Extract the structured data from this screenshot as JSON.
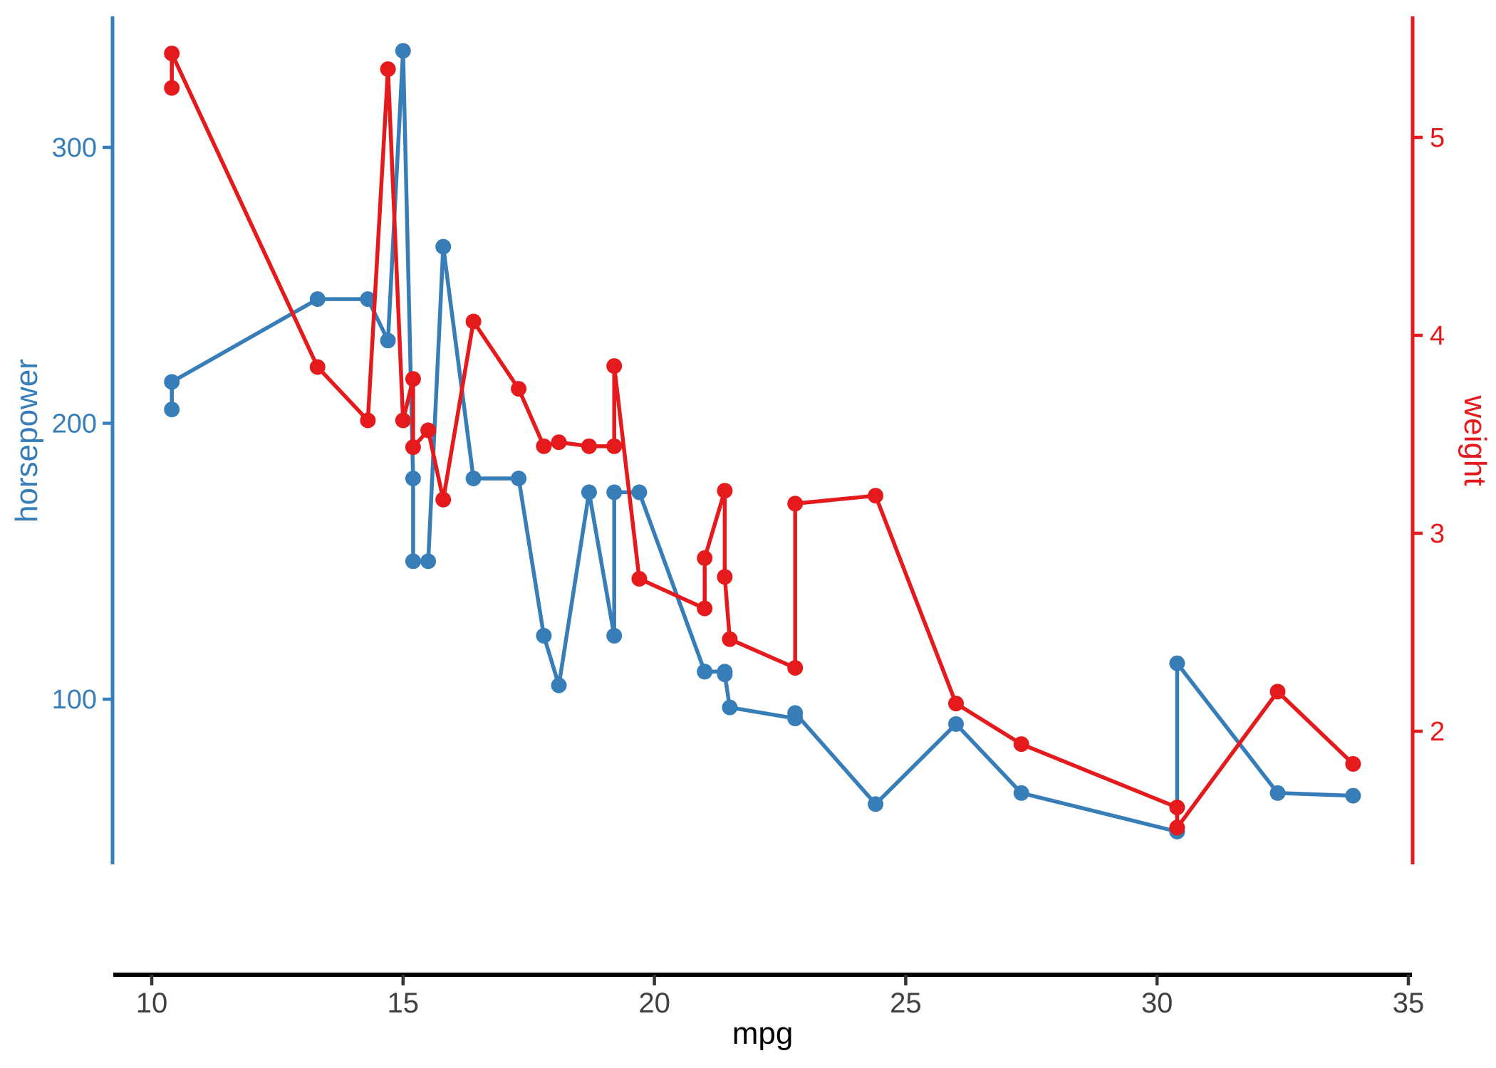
{
  "chart_data": {
    "type": "line",
    "title": "",
    "description": "Dual-axis line+point chart of mtcars: horsepower (left, blue) and weight (right, red) versus mpg, points connected in order of increasing mpg",
    "grid": "off",
    "legend": "none",
    "x_axis": {
      "label": "mpg",
      "ticks": [
        10,
        15,
        20,
        25,
        30,
        35
      ],
      "line_color": "#000000",
      "tick_label_color": "#404040"
    },
    "left_axis": {
      "label": "horsepower",
      "ticks": [
        100,
        200,
        300
      ],
      "color": "#377EB8"
    },
    "right_axis": {
      "label": "weight",
      "ticks": [
        2,
        3,
        4,
        5
      ],
      "color": "#E41A1C"
    },
    "x": [
      10.4,
      10.4,
      13.3,
      14.3,
      14.7,
      15.0,
      15.2,
      15.2,
      15.5,
      15.8,
      16.4,
      17.3,
      17.8,
      18.1,
      18.7,
      19.2,
      19.2,
      19.7,
      21.0,
      21.0,
      21.4,
      21.4,
      21.5,
      22.8,
      22.8,
      24.4,
      26.0,
      27.3,
      30.4,
      30.4,
      32.4,
      33.9
    ],
    "series": [
      {
        "name": "horsepower",
        "axis": "left",
        "color": "#377EB8",
        "values": [
          205,
          215,
          245,
          245,
          230,
          335,
          180,
          150,
          150,
          264,
          180,
          180,
          123,
          105,
          175,
          123,
          175,
          175,
          110,
          110,
          110,
          109,
          97,
          93,
          95,
          62,
          91,
          66,
          52,
          113,
          66,
          65
        ]
      },
      {
        "name": "weight",
        "axis": "right",
        "color": "#E41A1C",
        "values": [
          5.25,
          5.424,
          3.84,
          3.57,
          5.345,
          3.57,
          3.78,
          3.435,
          3.52,
          3.17,
          4.07,
          3.73,
          3.44,
          3.46,
          3.44,
          3.44,
          3.845,
          2.77,
          2.62,
          2.875,
          3.215,
          2.78,
          2.465,
          2.32,
          3.15,
          3.19,
          2.14,
          1.935,
          1.615,
          1.513,
          2.2,
          1.835
        ]
      }
    ]
  }
}
